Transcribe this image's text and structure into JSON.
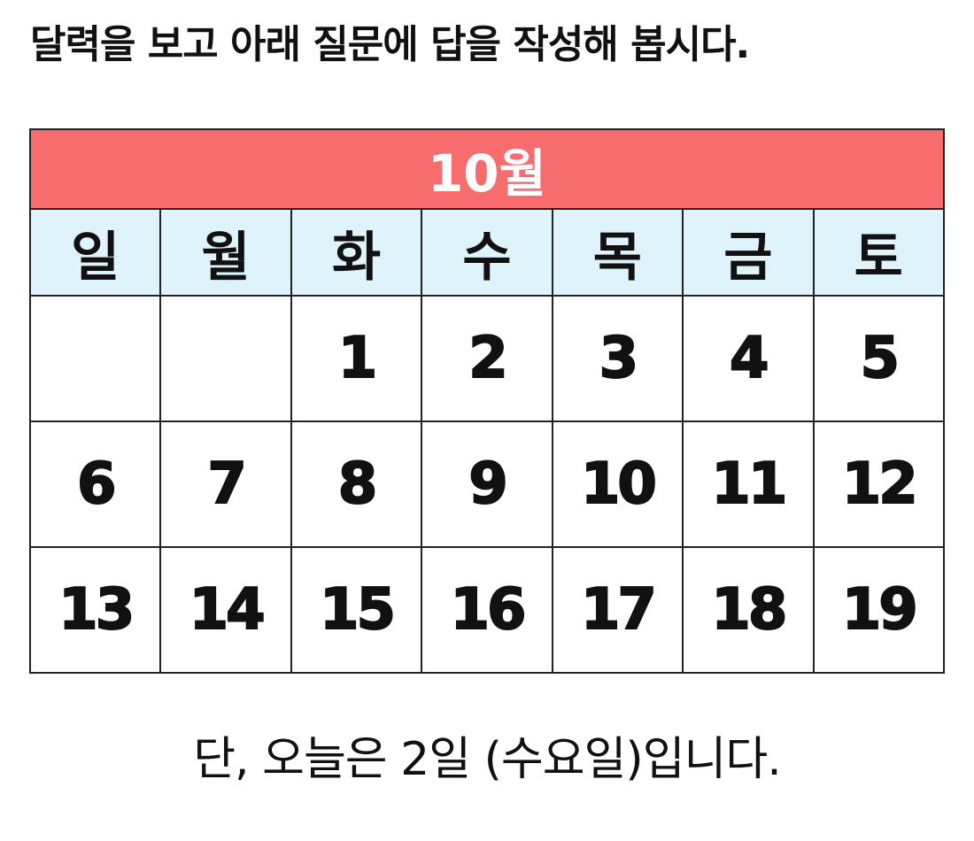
{
  "instruction": "달력을 보고 아래 질문에 답을 작성해 봅시다.",
  "calendar": {
    "month": "10월",
    "weekdays": [
      "일",
      "월",
      "화",
      "수",
      "목",
      "금",
      "토"
    ],
    "weeks": [
      [
        "",
        "",
        "1",
        "2",
        "3",
        "4",
        "5"
      ],
      [
        "6",
        "7",
        "8",
        "9",
        "10",
        "11",
        "12"
      ],
      [
        "13",
        "14",
        "15",
        "16",
        "17",
        "18",
        "19"
      ]
    ],
    "colors": {
      "month_header": "#f76c6c",
      "weekday_header": "#dff3fb"
    }
  },
  "note": "단, 오늘은 2일 (수요일)입니다."
}
